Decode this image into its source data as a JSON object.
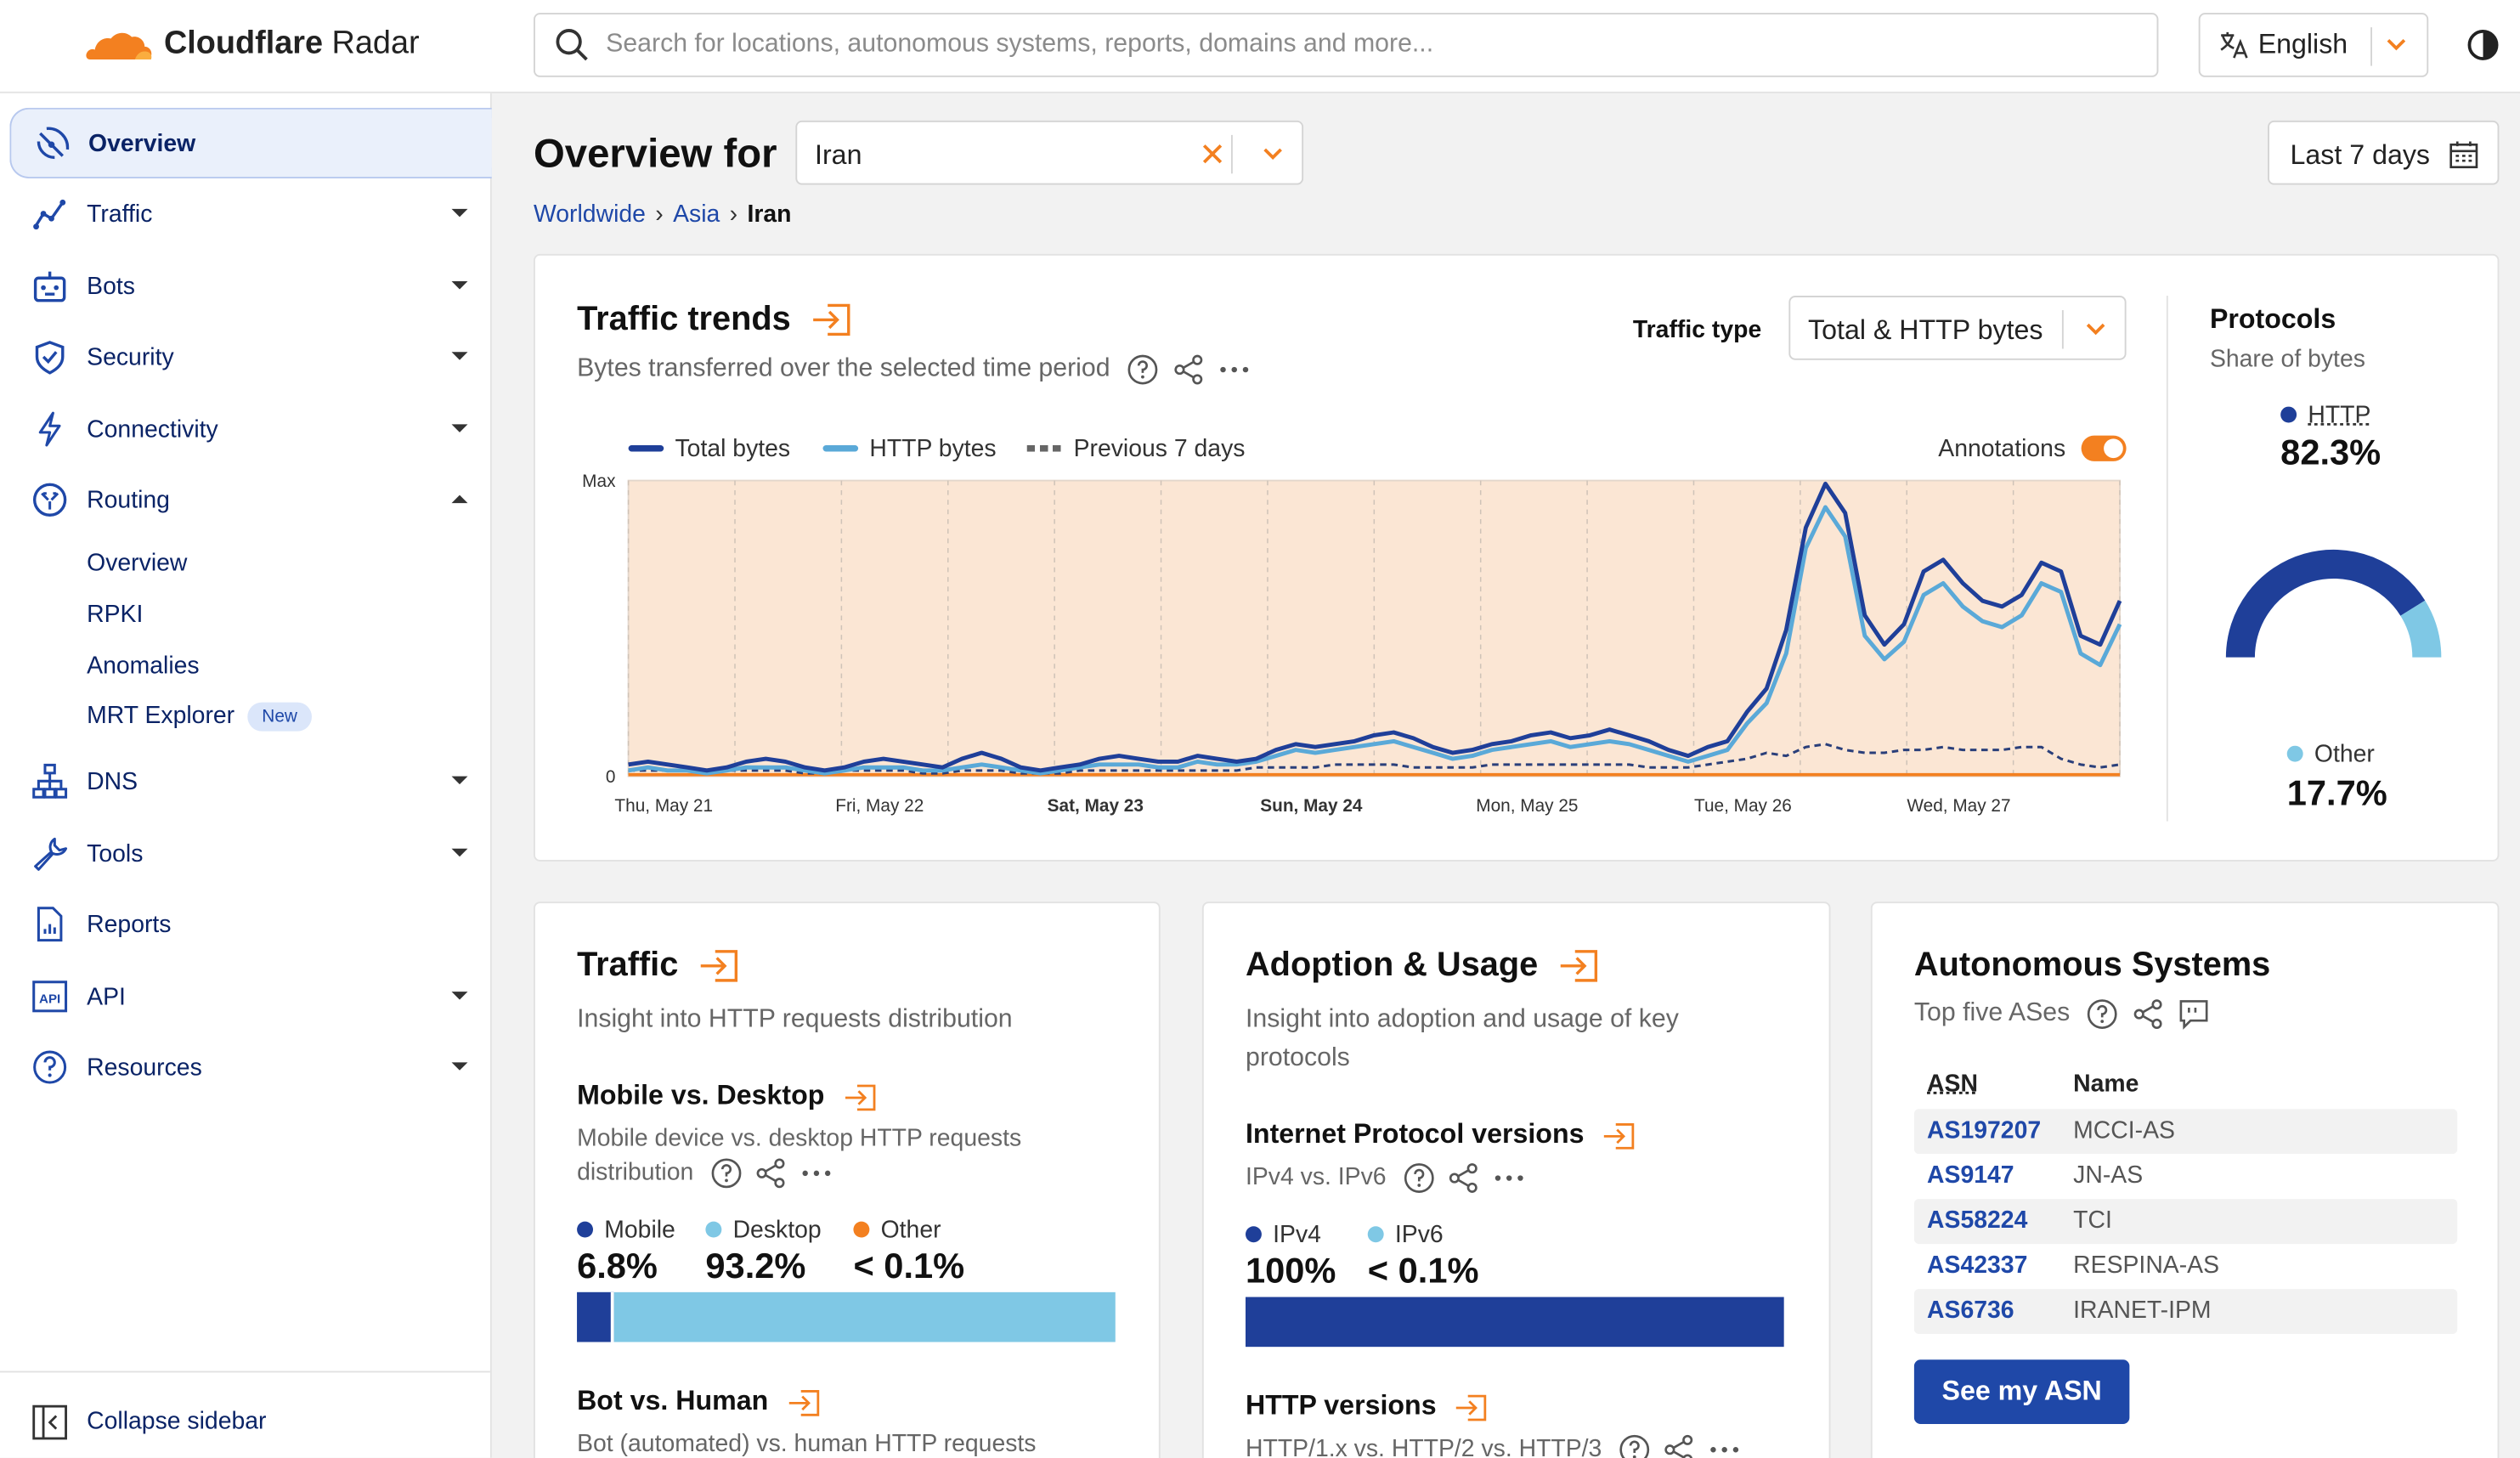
{
  "app": {
    "logo_bold": "Cloudflare",
    "logo_light": "Radar"
  },
  "search": {
    "placeholder": "Search for locations, autonomous systems, reports, domains and more..."
  },
  "language": {
    "label": "English"
  },
  "sidebar": {
    "items": [
      {
        "label": "Overview",
        "icon": "radar-icon"
      },
      {
        "label": "Traffic",
        "icon": "traffic-line-icon"
      },
      {
        "label": "Bots",
        "icon": "bot-icon"
      },
      {
        "label": "Security",
        "icon": "shield-icon"
      },
      {
        "label": "Connectivity",
        "icon": "bolt-icon"
      },
      {
        "label": "Routing",
        "icon": "routing-icon"
      },
      {
        "label": "DNS",
        "icon": "network-tree-icon"
      },
      {
        "label": "Tools",
        "icon": "wrench-icon"
      },
      {
        "label": "Reports",
        "icon": "report-doc-icon"
      },
      {
        "label": "API",
        "icon": "api-icon"
      },
      {
        "label": "Resources",
        "icon": "help-circle-icon"
      }
    ],
    "routing_sub": [
      "Overview",
      "RPKI",
      "Anomalies",
      "MRT Explorer"
    ],
    "new_badge": "New",
    "collapse_label": "Collapse sidebar"
  },
  "header": {
    "title": "Overview for",
    "country": "Iran",
    "date_range": "Last 7 days",
    "breadcrumbs": [
      "Worldwide",
      "Asia",
      "Iran"
    ]
  },
  "traffic_trends": {
    "title": "Traffic trends",
    "subtitle": "Bytes transferred over the selected time period",
    "traffic_type_label": "Traffic type",
    "traffic_type_value": "Total & HTTP bytes",
    "annotations_label": "Annotations",
    "colors": {
      "total": "#1f3f99",
      "http": "#5aa9d8",
      "previous": "#2a3f7a",
      "area": "#fbe6d4",
      "accent": "#f38020"
    }
  },
  "chart_data": {
    "type": "line",
    "y_tick_labels": [
      "Max",
      "0"
    ],
    "x_tick_labels": [
      "Thu, May 21",
      "Fri, May 22",
      "Sat, May 23",
      "Sun, May 24",
      "Mon, May 25",
      "Tue, May 26",
      "Wed, May 27"
    ],
    "x_tick_bold": [
      false,
      false,
      true,
      true,
      false,
      false,
      false
    ],
    "ylim": [
      0,
      1
    ],
    "legend_placement": "top-left",
    "grid": true,
    "series": [
      {
        "name": "Total bytes",
        "style": "solid",
        "values": [
          0.04,
          0.05,
          0.04,
          0.03,
          0.02,
          0.03,
          0.05,
          0.06,
          0.05,
          0.03,
          0.02,
          0.03,
          0.05,
          0.06,
          0.05,
          0.04,
          0.03,
          0.06,
          0.08,
          0.06,
          0.03,
          0.02,
          0.03,
          0.04,
          0.06,
          0.07,
          0.06,
          0.05,
          0.05,
          0.07,
          0.06,
          0.05,
          0.06,
          0.09,
          0.11,
          0.1,
          0.11,
          0.12,
          0.14,
          0.15,
          0.13,
          0.1,
          0.08,
          0.09,
          0.11,
          0.12,
          0.14,
          0.15,
          0.13,
          0.14,
          0.16,
          0.14,
          0.12,
          0.09,
          0.07,
          0.1,
          0.12,
          0.22,
          0.3,
          0.5,
          0.85,
          1.0,
          0.9,
          0.55,
          0.45,
          0.52,
          0.7,
          0.74,
          0.66,
          0.6,
          0.58,
          0.62,
          0.73,
          0.7,
          0.48,
          0.45,
          0.6
        ]
      },
      {
        "name": "HTTP bytes",
        "style": "solid",
        "values": [
          0.02,
          0.03,
          0.02,
          0.02,
          0.01,
          0.02,
          0.03,
          0.03,
          0.03,
          0.02,
          0.01,
          0.02,
          0.03,
          0.03,
          0.03,
          0.02,
          0.02,
          0.03,
          0.04,
          0.03,
          0.02,
          0.01,
          0.02,
          0.03,
          0.04,
          0.04,
          0.04,
          0.03,
          0.03,
          0.05,
          0.04,
          0.04,
          0.05,
          0.07,
          0.09,
          0.08,
          0.09,
          0.1,
          0.11,
          0.12,
          0.1,
          0.08,
          0.06,
          0.07,
          0.09,
          0.1,
          0.11,
          0.12,
          0.1,
          0.11,
          0.12,
          0.11,
          0.09,
          0.07,
          0.05,
          0.07,
          0.09,
          0.18,
          0.25,
          0.42,
          0.78,
          0.92,
          0.82,
          0.48,
          0.4,
          0.46,
          0.62,
          0.66,
          0.58,
          0.53,
          0.51,
          0.55,
          0.66,
          0.63,
          0.42,
          0.38,
          0.52
        ]
      },
      {
        "name": "Previous 7 days",
        "style": "dashed",
        "values": [
          0.02,
          0.02,
          0.02,
          0.02,
          0.01,
          0.02,
          0.02,
          0.02,
          0.02,
          0.01,
          0.01,
          0.02,
          0.02,
          0.02,
          0.02,
          0.01,
          0.01,
          0.02,
          0.02,
          0.02,
          0.01,
          0.01,
          0.01,
          0.02,
          0.02,
          0.02,
          0.02,
          0.02,
          0.02,
          0.02,
          0.02,
          0.02,
          0.03,
          0.03,
          0.03,
          0.03,
          0.04,
          0.04,
          0.04,
          0.04,
          0.03,
          0.03,
          0.03,
          0.03,
          0.04,
          0.04,
          0.04,
          0.04,
          0.04,
          0.04,
          0.04,
          0.04,
          0.03,
          0.03,
          0.03,
          0.04,
          0.05,
          0.06,
          0.08,
          0.07,
          0.1,
          0.11,
          0.09,
          0.08,
          0.08,
          0.09,
          0.09,
          0.1,
          0.09,
          0.09,
          0.09,
          0.1,
          0.1,
          0.06,
          0.04,
          0.03,
          0.04
        ]
      }
    ]
  },
  "protocols": {
    "title": "Protocols",
    "subtitle": "Share of bytes",
    "http_label": "HTTP",
    "http_value": "82.3%",
    "http_share": 0.823,
    "other_label": "Other",
    "other_value": "17.7%"
  },
  "traffic_card": {
    "title": "Traffic",
    "subtitle": "Insight into HTTP requests distribution",
    "mobile_desktop_title": "Mobile vs. Desktop",
    "mobile_desktop_sub": "Mobile device vs. desktop HTTP requests distribution",
    "mobile_label": "Mobile",
    "mobile_value": "6.8%",
    "mobile_share": 0.068,
    "desktop_label": "Desktop",
    "desktop_value": "93.2%",
    "other_label": "Other",
    "other_value": "< 0.1%",
    "bot_human_title": "Bot vs. Human",
    "bot_human_sub": "Bot (automated) vs. human HTTP requests"
  },
  "adoption_card": {
    "title": "Adoption & Usage",
    "subtitle": "Insight into adoption and usage of key protocols",
    "ip_title": "Internet Protocol versions",
    "ip_sub": "IPv4 vs. IPv6",
    "ipv4_label": "IPv4",
    "ipv4_value": "100%",
    "ipv6_label": "IPv6",
    "ipv6_value": "< 0.1%",
    "http_versions_title": "HTTP versions",
    "http_versions_sub": "HTTP/1.x vs. HTTP/2 vs. HTTP/3"
  },
  "as_card": {
    "title": "Autonomous Systems",
    "subtitle": "Top five ASes",
    "col_asn": "ASN",
    "col_name": "Name",
    "rows": [
      {
        "asn": "AS197207",
        "name": "MCCI-AS"
      },
      {
        "asn": "AS9147",
        "name": "JN-AS"
      },
      {
        "asn": "AS58224",
        "name": "TCI"
      },
      {
        "asn": "AS42337",
        "name": "RESPINA-AS"
      },
      {
        "asn": "AS6736",
        "name": "IRANET-IPM"
      }
    ],
    "button": "See my ASN"
  }
}
